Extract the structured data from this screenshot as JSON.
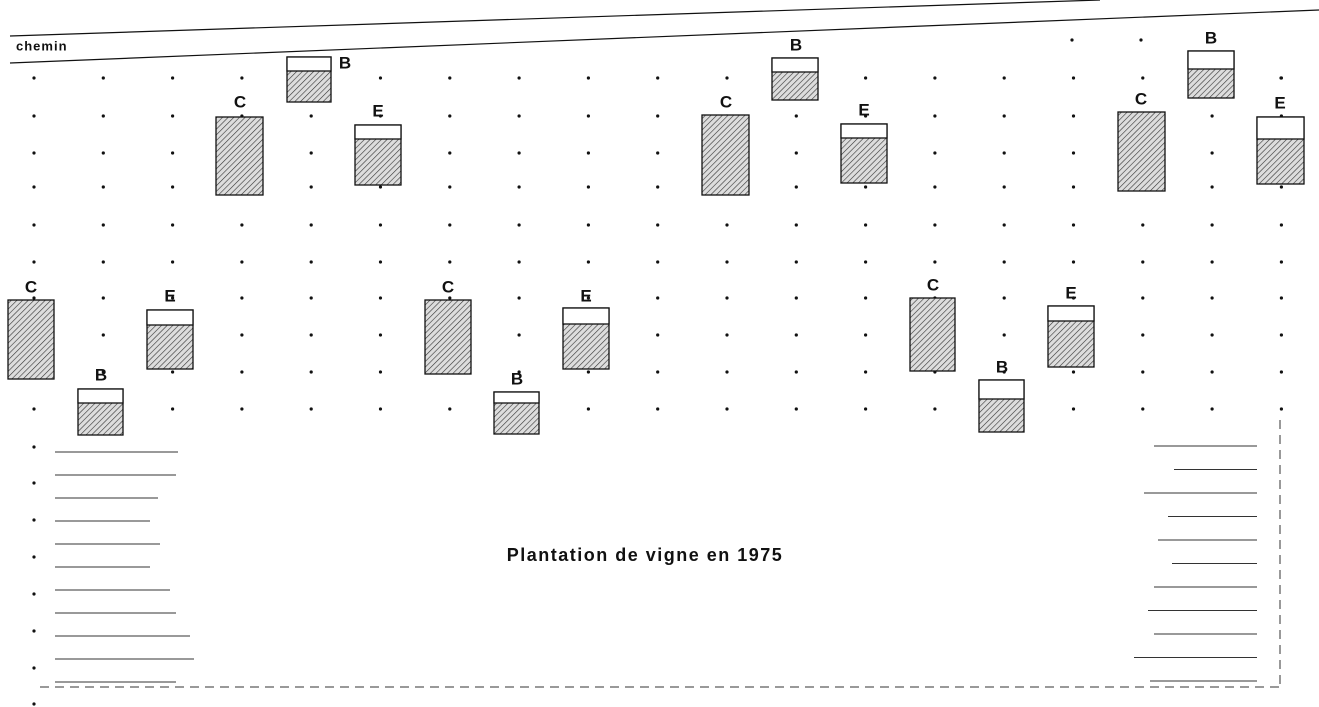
{
  "path_label": "chemin",
  "caption": "Plantation de vigne en 1975",
  "pits": [
    {
      "label": "C"
    },
    {
      "label": "B"
    },
    {
      "label": "E"
    },
    {
      "label": "C"
    },
    {
      "label": "B"
    },
    {
      "label": "E"
    },
    {
      "label": "C"
    },
    {
      "label": "B"
    },
    {
      "label": "E"
    },
    {
      "label": "C"
    },
    {
      "label": "B"
    },
    {
      "label": "E"
    },
    {
      "label": "C"
    },
    {
      "label": "B"
    },
    {
      "label": "E"
    },
    {
      "label": "C"
    },
    {
      "label": "B"
    },
    {
      "label": "E"
    }
  ]
}
